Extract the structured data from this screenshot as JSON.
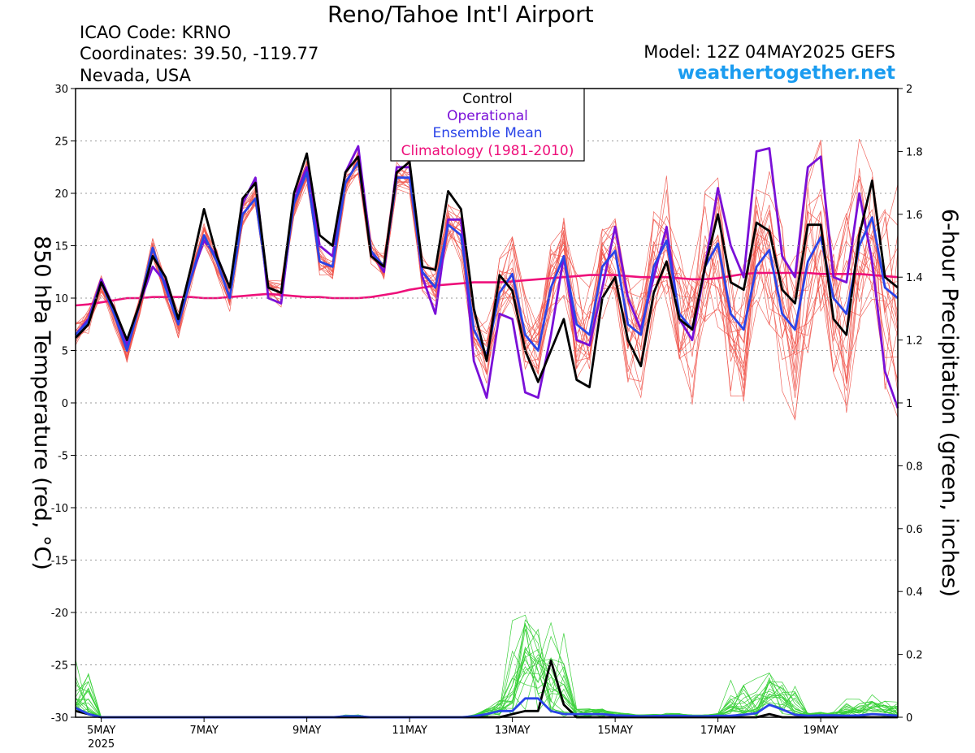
{
  "header": {
    "title": "Reno/Tahoe Int'l Airport",
    "icao": "ICAO Code: KRNO",
    "coords": "Coordinates: 39.50, -119.77",
    "region": "Nevada, USA",
    "model": "Model: 12Z 04MAY2025 GEFS",
    "site": "weathertogether.net"
  },
  "colors": {
    "control": "#000000",
    "operational": "#7a10d8",
    "ensemble_mean": "#2a44e8",
    "climatology": "#ee0f7a",
    "members_temp": "#f0564e",
    "members_precip": "#3ad13a",
    "site_link": "#1a9cf0"
  },
  "chart_data": {
    "type": "line",
    "title": "Reno/Tahoe Int'l Airport",
    "ylabel": "850 hPa Temperature (red, °C)",
    "y2label": "6-hour Precipitation (green, inches)",
    "ylim": [
      -30,
      30
    ],
    "y2lim": [
      0,
      2
    ],
    "yticks": [
      "30",
      "25",
      "20",
      "15",
      "10",
      "5",
      "0",
      "-5",
      "-10",
      "-15",
      "-20",
      "-25",
      "-30"
    ],
    "y2ticks": [
      "2",
      "1.8",
      "1.6",
      "1.4",
      "1.2",
      "1",
      "0.8",
      "0.6",
      "0.4",
      "0.2",
      "0"
    ],
    "xticks": [
      "5MAY",
      "7MAY",
      "9MAY",
      "11MAY",
      "13MAY",
      "15MAY",
      "17MAY",
      "19MAY"
    ],
    "xyear": "2025",
    "x_start": "2025-05-04 12Z",
    "x_end": "2025-05-20 12Z",
    "x_step_hours": 6,
    "grid": true,
    "legend_position": "top-center",
    "legend": [
      "Control",
      "Operational",
      "Ensemble Mean",
      "Climatology (1981-2010)"
    ],
    "series": [
      {
        "name": "Control",
        "axis": "temp",
        "values": [
          6.2,
          7.5,
          11.5,
          9.0,
          6.0,
          9.5,
          14.0,
          12.0,
          8.0,
          13.0,
          18.5,
          14.0,
          11.0,
          19.5,
          21.0,
          11.0,
          10.5,
          20.0,
          23.8,
          16.0,
          15.0,
          22.0,
          23.5,
          14.0,
          13.0,
          22.0,
          23.0,
          13.0,
          12.7,
          20.2,
          18.5,
          9.0,
          4.0,
          12.2,
          10.7,
          5.0,
          2.0,
          5.0,
          8.0,
          2.2,
          1.5,
          10.0,
          12.0,
          6.0,
          3.5,
          10.5,
          13.5,
          8.0,
          7.0,
          13.0,
          18.0,
          11.5,
          10.8,
          17.2,
          16.4,
          10.8,
          9.5,
          17.0,
          17.0,
          8.0,
          6.5,
          16.0,
          21.2,
          12.0,
          11.0
        ]
      },
      {
        "name": "Operational",
        "axis": "temp",
        "values": [
          6.5,
          8.0,
          11.8,
          9.0,
          5.5,
          9.5,
          13.0,
          11.5,
          8.0,
          12.0,
          15.5,
          14.0,
          11.0,
          19.0,
          21.5,
          10.0,
          9.5,
          19.5,
          22.5,
          15.0,
          14.0,
          22.0,
          24.5,
          14.5,
          12.5,
          22.5,
          22.5,
          12.0,
          8.5,
          17.5,
          17.5,
          4.0,
          0.5,
          8.5,
          8.0,
          1.0,
          0.5,
          6.5,
          14.0,
          6.0,
          5.5,
          11.0,
          16.8,
          10.0,
          7.0,
          12.0,
          16.8,
          8.0,
          6.0,
          13.0,
          20.5,
          15.0,
          12.0,
          24.0,
          24.3,
          14.0,
          12.0,
          22.5,
          23.5,
          12.0,
          11.5,
          20.0,
          13.5,
          3.0,
          -0.5
        ]
      },
      {
        "name": "Ensemble Mean",
        "axis": "temp",
        "values": [
          6.5,
          7.8,
          11.5,
          8.5,
          5.0,
          9.5,
          14.8,
          11.0,
          7.5,
          12.0,
          16.0,
          13.5,
          10.0,
          18.0,
          19.5,
          11.0,
          10.5,
          19.0,
          22.0,
          13.5,
          13.0,
          21.0,
          23.0,
          14.5,
          13.0,
          21.5,
          21.5,
          12.5,
          11.0,
          17.0,
          16.0,
          7.0,
          4.5,
          10.5,
          12.3,
          6.5,
          5.0,
          11.0,
          14.0,
          7.5,
          6.5,
          13.0,
          14.5,
          7.5,
          6.5,
          13.0,
          15.5,
          8.5,
          7.0,
          13.0,
          15.2,
          8.5,
          7.0,
          13.0,
          14.6,
          8.5,
          7.0,
          13.5,
          15.8,
          10.0,
          8.5,
          15.0,
          17.7,
          11.0,
          10.0
        ]
      },
      {
        "name": "Climatology (1981-2010)",
        "axis": "temp",
        "values": [
          9.3,
          9.4,
          9.6,
          9.8,
          10.0,
          10.0,
          10.1,
          10.1,
          10.1,
          10.1,
          10.0,
          10.0,
          10.1,
          10.2,
          10.3,
          10.4,
          10.3,
          10.2,
          10.1,
          10.1,
          10.0,
          10.0,
          10.0,
          10.1,
          10.3,
          10.5,
          10.8,
          11.0,
          11.2,
          11.3,
          11.4,
          11.5,
          11.5,
          11.5,
          11.6,
          11.7,
          11.8,
          11.9,
          12.0,
          12.1,
          12.2,
          12.2,
          12.2,
          12.1,
          12.0,
          12.0,
          12.0,
          11.9,
          11.8,
          11.8,
          11.9,
          12.1,
          12.3,
          12.4,
          12.4,
          12.4,
          12.4,
          12.4,
          12.3,
          12.3,
          12.3,
          12.3,
          12.2,
          12.1,
          12.0
        ]
      },
      {
        "name": "Control",
        "axis": "precip",
        "values": [
          0.02,
          0.01,
          0,
          0,
          0,
          0,
          0,
          0,
          0,
          0,
          0,
          0,
          0,
          0,
          0,
          0,
          0,
          0,
          0,
          0,
          0,
          0,
          0,
          0,
          0,
          0,
          0,
          0,
          0,
          0,
          0,
          0,
          0,
          0,
          0.01,
          0.02,
          0.02,
          0.18,
          0.04,
          0,
          0,
          0,
          0,
          0,
          0,
          0,
          0,
          0,
          0,
          0,
          0,
          0,
          0,
          0,
          0.01,
          0,
          0,
          0,
          0,
          0,
          0,
          0,
          0,
          0,
          0
        ]
      },
      {
        "name": "Ensemble Mean",
        "axis": "precip",
        "values": [
          0.03,
          0.01,
          0,
          0,
          0,
          0,
          0,
          0,
          0,
          0,
          0,
          0,
          0,
          0,
          0,
          0,
          0,
          0,
          0,
          0,
          0,
          0.003,
          0.003,
          0,
          0,
          0,
          0,
          0,
          0,
          0,
          0,
          0.003,
          0.01,
          0.02,
          0.02,
          0.06,
          0.06,
          0.02,
          0.01,
          0.01,
          0.01,
          0.01,
          0.006,
          0.005,
          0.003,
          0.004,
          0.005,
          0.005,
          0.003,
          0.003,
          0.005,
          0.005,
          0.008,
          0.013,
          0.04,
          0.025,
          0.008,
          0.005,
          0.006,
          0.006,
          0.005,
          0.006,
          0.01,
          0.008,
          0.005
        ]
      }
    ]
  }
}
